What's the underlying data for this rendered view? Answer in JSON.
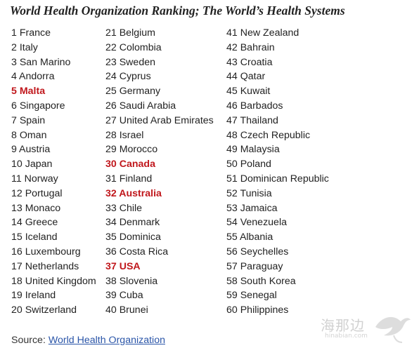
{
  "title": "World Health Organization Ranking; The World’s Health Systems",
  "columns": [
    [
      {
        "text": "1 France"
      },
      {
        "text": "2 Italy"
      },
      {
        "text": "3 San Marino"
      },
      {
        "text": "4 Andorra"
      },
      {
        "text": "5 Malta",
        "highlight": true
      },
      {
        "text": "6 Singapore"
      },
      {
        "text": "7 Spain"
      },
      {
        "text": "8 Oman"
      },
      {
        "text": "9 Austria"
      },
      {
        "text": "10 Japan"
      },
      {
        "text": "11 Norway"
      },
      {
        "text": "12 Portugal"
      },
      {
        "text": "13 Monaco"
      },
      {
        "text": "14 Greece"
      },
      {
        "text": "15 Iceland"
      },
      {
        "text": "16 Luxembourg"
      },
      {
        "text": "17 Netherlands"
      },
      {
        "text": "18 United Kingdom"
      },
      {
        "text": "19 Ireland"
      },
      {
        "text": "20 Switzerland"
      }
    ],
    [
      {
        "text": "21 Belgium"
      },
      {
        "text": "22 Colombia"
      },
      {
        "text": "23 Sweden"
      },
      {
        "text": "24 Cyprus"
      },
      {
        "text": "25 Germany"
      },
      {
        "text": "26 Saudi Arabia"
      },
      {
        "text": "27 United Arab Emirates"
      },
      {
        "text": "28 Israel"
      },
      {
        "text": "29 Morocco"
      },
      {
        "text": "30 Canada",
        "highlight": true
      },
      {
        "text": "31 Finland"
      },
      {
        "text": "32 Australia",
        "highlight": true
      },
      {
        "text": "33 Chile"
      },
      {
        "text": "34 Denmark"
      },
      {
        "text": "35 Dominica"
      },
      {
        "text": "36 Costa Rica"
      },
      {
        "text": "37 USA",
        "highlight": true
      },
      {
        "text": "38 Slovenia"
      },
      {
        "text": "39 Cuba"
      },
      {
        "text": "40 Brunei"
      }
    ],
    [
      {
        "text": "41 New Zealand"
      },
      {
        "text": "42 Bahrain"
      },
      {
        "text": "43 Croatia"
      },
      {
        "text": "44 Qatar"
      },
      {
        "text": "45 Kuwait"
      },
      {
        "text": "46 Barbados"
      },
      {
        "text": "47 Thailand"
      },
      {
        "text": "48 Czech Republic"
      },
      {
        "text": "49 Malaysia"
      },
      {
        "text": "50 Poland"
      },
      {
        "text": "51 Dominican Republic"
      },
      {
        "text": "52 Tunisia"
      },
      {
        "text": "53 Jamaica"
      },
      {
        "text": "54 Venezuela"
      },
      {
        "text": "55 Albania"
      },
      {
        "text": "56 Seychelles"
      },
      {
        "text": "57 Paraguay"
      },
      {
        "text": "58 South Korea"
      },
      {
        "text": "59 Senegal"
      },
      {
        "text": "60 Philippines"
      }
    ]
  ],
  "source": {
    "label": "Source:",
    "link_text": "World Health Organization"
  },
  "watermark": {
    "cn": "海那边",
    "en": "hinabian.com"
  },
  "colors": {
    "highlight": "#c0171c",
    "link": "#2a55a8",
    "text": "#222222"
  }
}
